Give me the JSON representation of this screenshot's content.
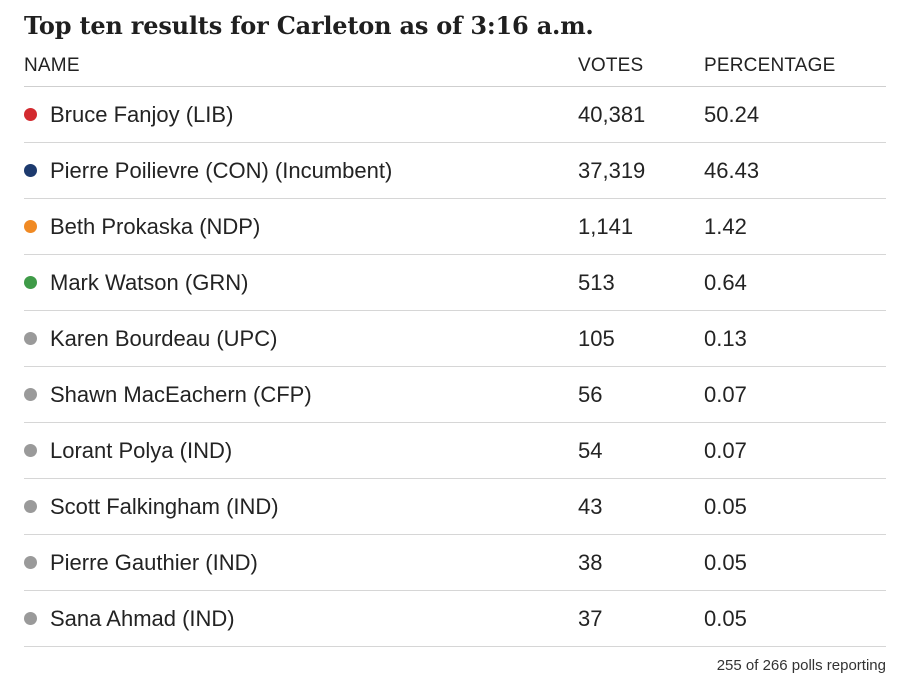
{
  "chart_data": {
    "type": "table",
    "title": "Top ten results for Carleton as of 3:16 a.m.",
    "columns": [
      "NAME",
      "VOTES",
      "PERCENTAGE"
    ],
    "rows": [
      {
        "name": "Bruce Fanjoy (LIB)",
        "votes": "40,381",
        "percentage": "50.24",
        "color": "#d32a2f"
      },
      {
        "name": "Pierre Poilievre (CON) (Incumbent)",
        "votes": "37,319",
        "percentage": "46.43",
        "color": "#1d3a6e"
      },
      {
        "name": "Beth Prokaska (NDP)",
        "votes": "1,141",
        "percentage": "1.42",
        "color": "#f08a24"
      },
      {
        "name": "Mark Watson (GRN)",
        "votes": "513",
        "percentage": "0.64",
        "color": "#3f9b48"
      },
      {
        "name": "Karen Bourdeau (UPC)",
        "votes": "105",
        "percentage": "0.13",
        "color": "#9a9a9a"
      },
      {
        "name": "Shawn MacEachern (CFP)",
        "votes": "56",
        "percentage": "0.07",
        "color": "#9a9a9a"
      },
      {
        "name": "Lorant Polya (IND)",
        "votes": "54",
        "percentage": "0.07",
        "color": "#9a9a9a"
      },
      {
        "name": "Scott Falkingham (IND)",
        "votes": "43",
        "percentage": "0.05",
        "color": "#9a9a9a"
      },
      {
        "name": "Pierre Gauthier (IND)",
        "votes": "38",
        "percentage": "0.05",
        "color": "#9a9a9a"
      },
      {
        "name": "Sana Ahmad (IND)",
        "votes": "37",
        "percentage": "0.05",
        "color": "#9a9a9a"
      }
    ],
    "footer": "255 of 266 polls reporting"
  }
}
